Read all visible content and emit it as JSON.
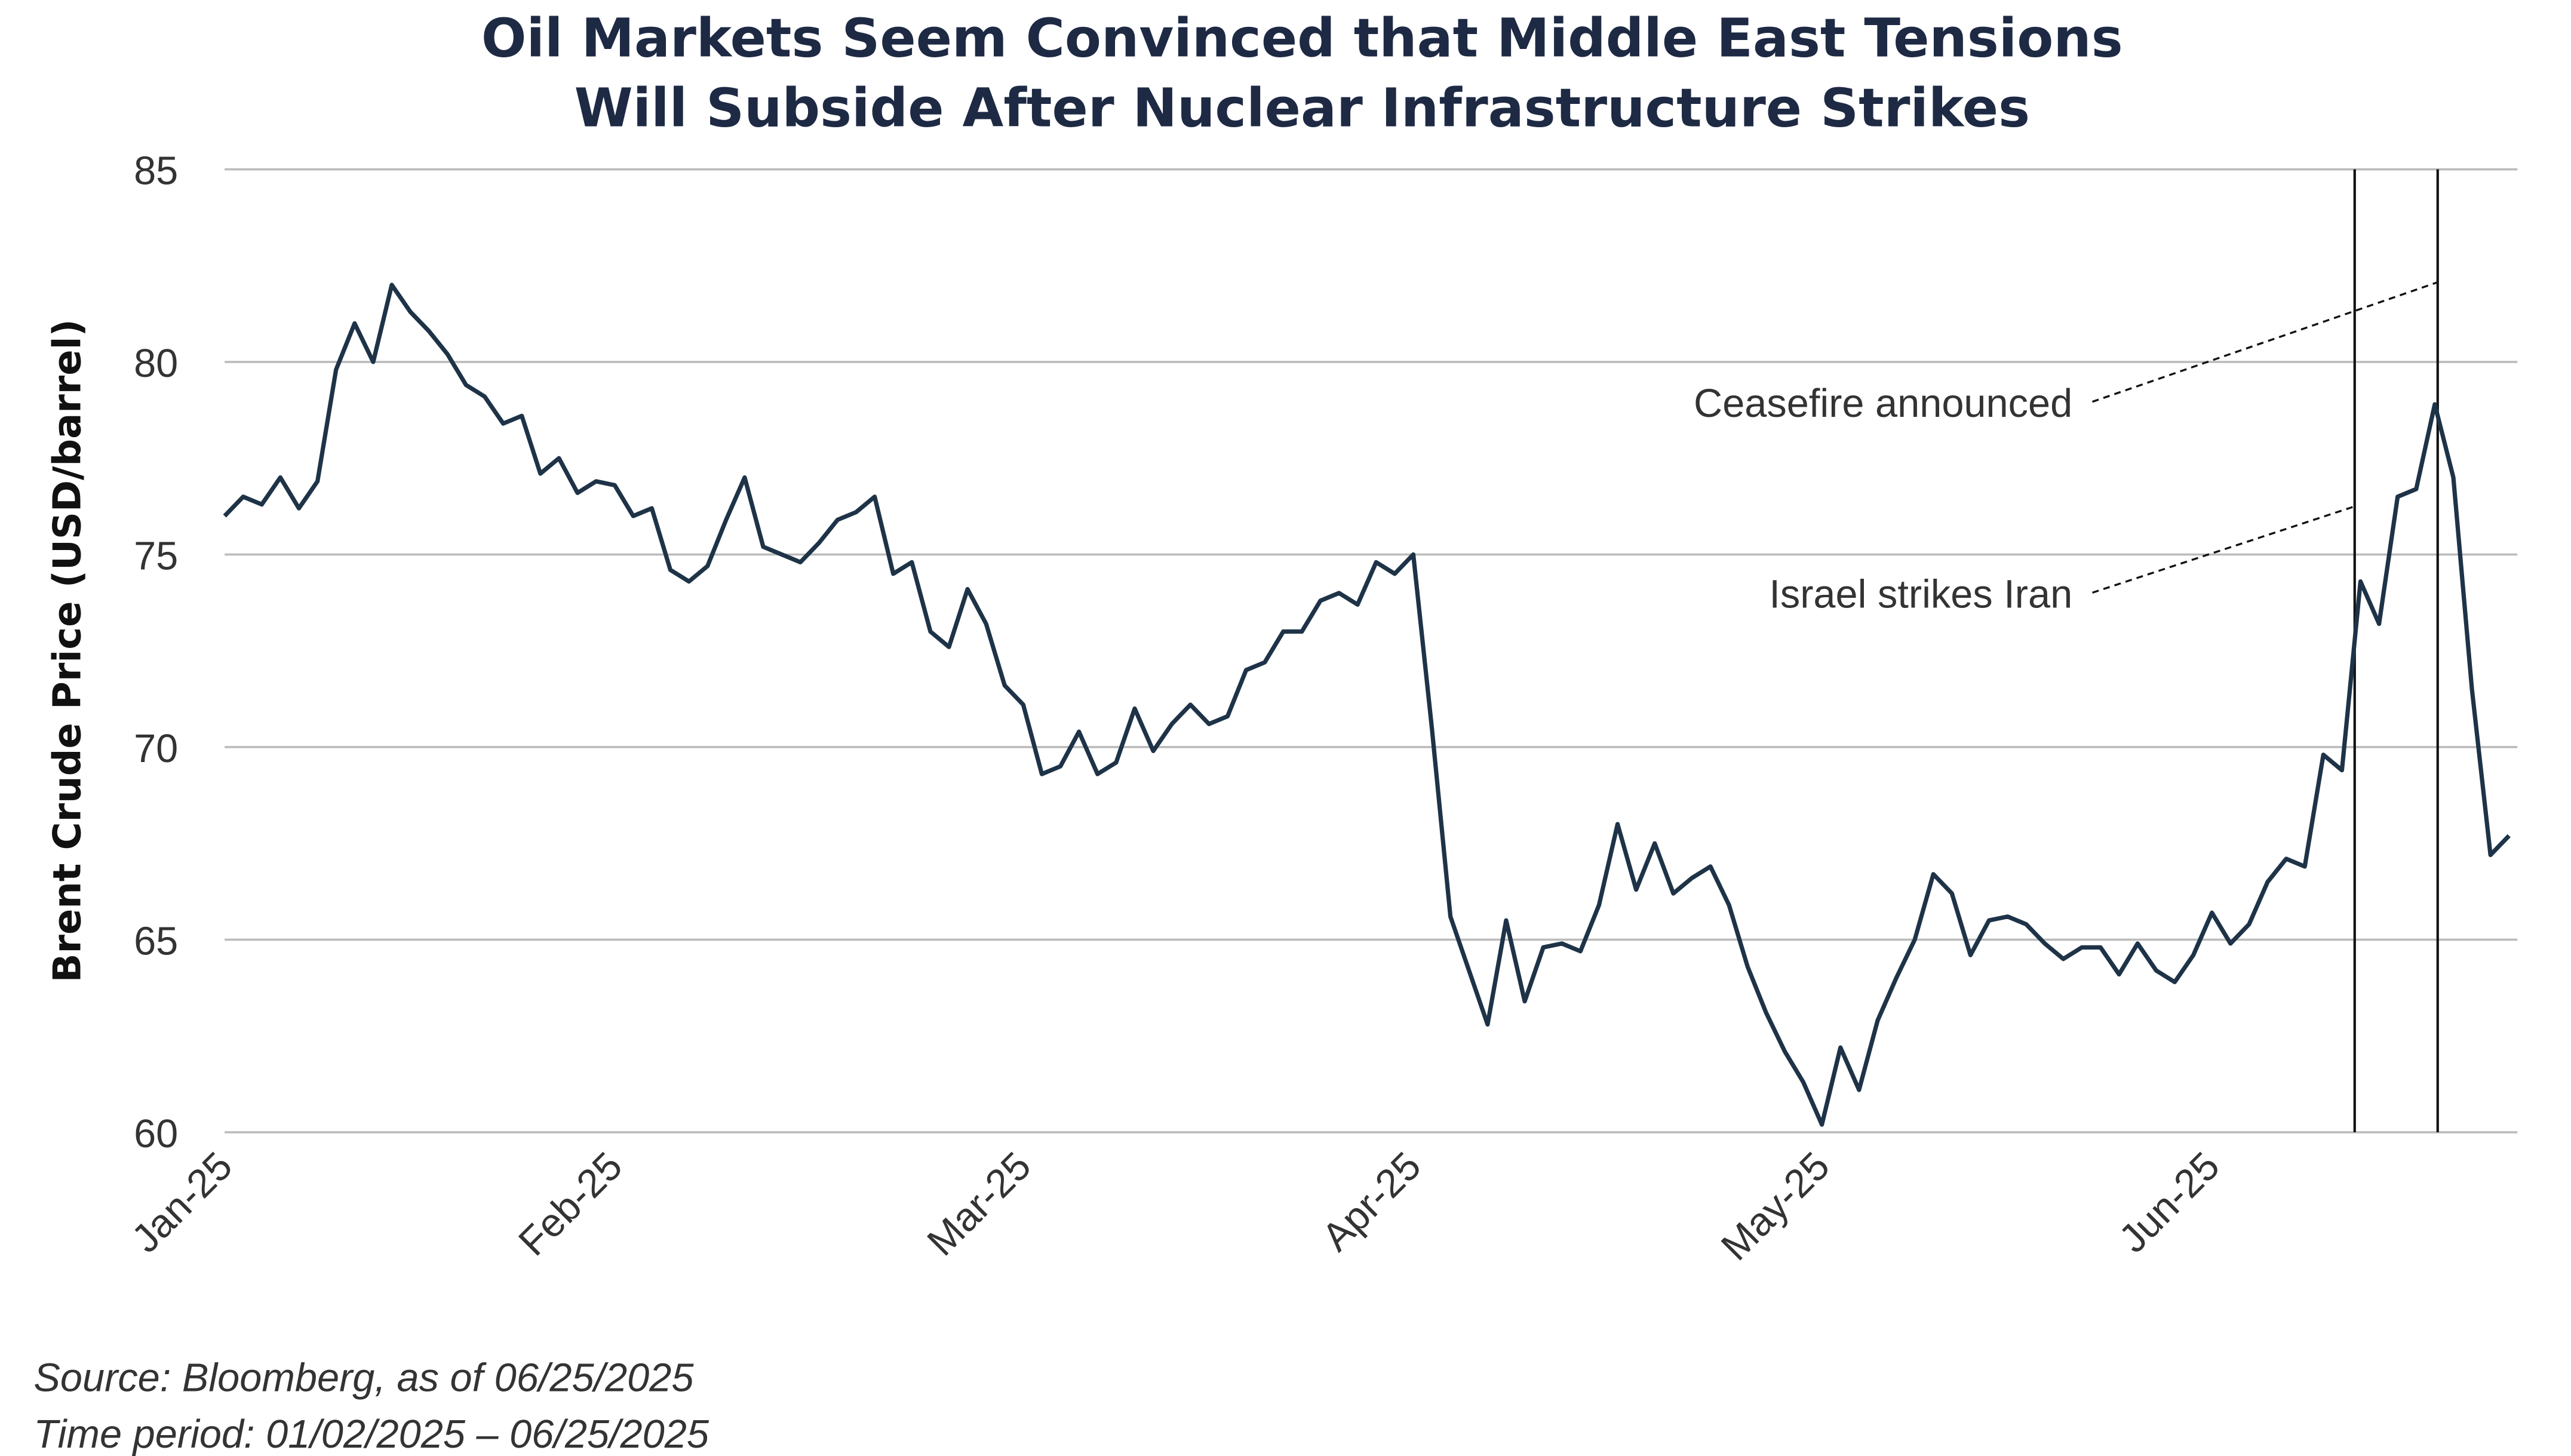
{
  "chart_data": {
    "type": "line",
    "title": [
      "Oil Markets Seem Convinced that Middle East Tensions",
      "Will Subside After Nuclear Infrastructure Strikes"
    ],
    "ylabel": "Brent Crude Price (USD/barrel)",
    "categories": [
      "Jan-25",
      null,
      null,
      null,
      null,
      null,
      null,
      null,
      null,
      null,
      null,
      null,
      null,
      null,
      null,
      null,
      null,
      null,
      null,
      null,
      null,
      "Feb-25",
      null,
      null,
      null,
      null,
      null,
      null,
      null,
      null,
      null,
      null,
      null,
      null,
      null,
      null,
      null,
      null,
      null,
      null,
      null,
      null,
      null,
      "Mar-25",
      null,
      null,
      null,
      null,
      null,
      null,
      null,
      null,
      null,
      null,
      null,
      null,
      null,
      null,
      null,
      null,
      null,
      null,
      null,
      null,
      "Apr-25",
      null,
      null,
      null,
      null,
      null,
      null,
      null,
      null,
      null,
      null,
      null,
      null,
      null,
      null,
      null,
      null,
      null,
      null,
      null,
      null,
      null,
      "May-25",
      null,
      null,
      null,
      null,
      null,
      null,
      null,
      null,
      null,
      null,
      null,
      null,
      null,
      null,
      null,
      null,
      null,
      null,
      null,
      null,
      "Jun-25",
      null,
      null,
      null,
      null,
      null,
      null,
      null,
      null,
      null,
      null,
      null,
      null,
      null,
      null,
      null,
      null
    ],
    "values": [
      76.0,
      76.5,
      76.3,
      77.0,
      76.2,
      76.9,
      79.8,
      81.0,
      80.0,
      82.0,
      81.3,
      80.8,
      80.2,
      79.4,
      79.1,
      78.4,
      78.6,
      77.1,
      77.5,
      76.6,
      76.9,
      76.8,
      76.0,
      76.2,
      74.6,
      74.3,
      74.7,
      75.9,
      77.0,
      75.2,
      75.0,
      74.8,
      75.3,
      75.9,
      76.1,
      76.5,
      74.5,
      74.8,
      73.0,
      72.6,
      74.1,
      73.2,
      71.6,
      71.1,
      69.3,
      69.5,
      70.4,
      69.3,
      69.6,
      71.0,
      69.9,
      70.6,
      71.1,
      70.6,
      70.8,
      72.0,
      72.2,
      73.0,
      73.0,
      73.8,
      74.0,
      73.7,
      74.8,
      74.5,
      75.0,
      70.5,
      65.6,
      64.2,
      62.8,
      65.5,
      63.4,
      64.8,
      64.9,
      64.7,
      65.9,
      68.0,
      66.3,
      67.5,
      66.2,
      66.6,
      66.9,
      65.9,
      64.3,
      63.1,
      62.1,
      61.3,
      60.2,
      62.2,
      61.1,
      62.9,
      64.0,
      65.0,
      66.7,
      66.2,
      64.6,
      65.5,
      65.6,
      65.4,
      64.9,
      64.5,
      64.8,
      64.8,
      64.1,
      64.9,
      64.2,
      63.9,
      64.6,
      65.7,
      64.9,
      65.4,
      66.5,
      67.1,
      66.9,
      69.8,
      69.4,
      74.3,
      73.2,
      76.5,
      76.7,
      78.9,
      77.0,
      71.5,
      67.2,
      67.7
    ],
    "color": "#1e3347",
    "ylim": [
      60,
      85
    ],
    "yticks": [
      60,
      65,
      70,
      75,
      80,
      85
    ],
    "grid": true,
    "annotations": [
      "Israel strikes Iran",
      "Ceasefire announced"
    ],
    "notes": [
      "Source: Bloomberg, as of 06/25/2025",
      "Time period: 01/02/2025 – 06/25/2025"
    ]
  }
}
